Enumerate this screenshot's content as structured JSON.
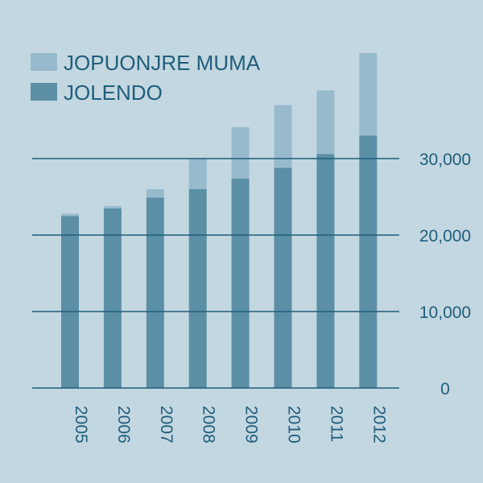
{
  "chart_data": {
    "type": "bar",
    "stacked": true,
    "categories": [
      "2005",
      "2006",
      "2007",
      "2008",
      "2009",
      "2010",
      "2011",
      "2012"
    ],
    "series": [
      {
        "name": "JOLENDO",
        "color": "#5b8fa6",
        "values": [
          22500,
          23500,
          24900,
          26000,
          27400,
          28800,
          30600,
          33000
        ]
      },
      {
        "name": "JOPUONJRE MUMA",
        "color": "#97bbcd",
        "values": [
          300,
          300,
          1100,
          4000,
          6700,
          8200,
          8300,
          10800
        ]
      }
    ],
    "ylim": [
      0,
      44000
    ],
    "yticks": [
      0,
      10000,
      20000,
      30000
    ],
    "ytick_labels": [
      "0",
      "10,000",
      "20,000",
      "30,000"
    ],
    "y_axis_side": "right",
    "grid": "horizontal",
    "legend_position": "top-left",
    "title": "",
    "xlabel": "",
    "ylabel": ""
  },
  "colors": {
    "background": "#c3d7e1",
    "gridline": "#1f5e7a",
    "text": "#1f5e7a"
  }
}
